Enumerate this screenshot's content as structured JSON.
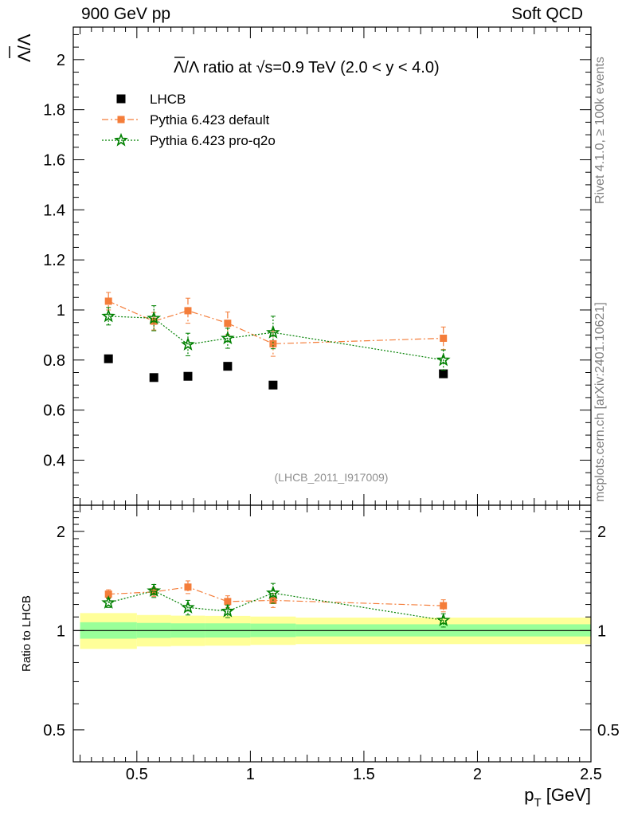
{
  "header": {
    "energy_label": "900 GeV pp",
    "category_label": "Soft QCD",
    "side_label_1": "Rivet 4.1.0, ≥ 100k events",
    "side_label_2": "mcplots.cern.ch [arXiv:2401.10621]"
  },
  "chart_data": [
    {
      "type": "scatter",
      "panel": "main",
      "title": "Λ̅/Λ ratio at √s=0.9 TeV (2.0 < y < 4.0)",
      "title_parts": {
        "lhs": "Λ/Λ",
        "mid": " ratio at ",
        "sqrt": "√",
        "rest": "s=0.9 TeV (2.0 < y < 4.0)"
      },
      "ylabel": "Λ/Λ",
      "xlim": [
        0.22,
        2.5
      ],
      "ylim": [
        0.22,
        2.13
      ],
      "yticks": [
        0.4,
        0.6,
        0.8,
        1,
        1.2,
        1.4,
        1.6,
        1.8,
        2
      ],
      "ytick_labels": [
        "0.4",
        "0.6",
        "0.8",
        "1",
        "1.2",
        "1.4",
        "1.6",
        "1.8",
        "2"
      ],
      "watermark": "(LHCB_2011_I917009)",
      "legend_position": "top-left",
      "x": [
        0.375,
        0.575,
        0.725,
        0.9,
        1.1,
        1.85
      ],
      "x_edges": [
        0.25,
        0.5,
        0.65,
        0.8,
        1.0,
        1.2,
        2.5
      ],
      "series": [
        {
          "name": "LHCB",
          "color": "#000000",
          "marker": "square",
          "line": "none",
          "values": [
            0.805,
            0.73,
            0.735,
            0.775,
            0.7,
            0.745
          ]
        },
        {
          "name": "Pythia 6.423 default",
          "color": "#f47d3a",
          "marker": "square",
          "line": "dashdot",
          "values": [
            1.035,
            0.955,
            0.997,
            0.947,
            0.865,
            0.887
          ],
          "errors": [
            0.035,
            0.035,
            0.05,
            0.045,
            0.05,
            0.045
          ]
        },
        {
          "name": "Pythia 6.423 pro-q2o",
          "color": "#008000",
          "marker": "star",
          "line": "dotted",
          "values": [
            0.975,
            0.967,
            0.862,
            0.887,
            0.91,
            0.8
          ],
          "errors": [
            0.035,
            0.05,
            0.045,
            0.04,
            0.065,
            0.04
          ]
        }
      ]
    },
    {
      "type": "scatter",
      "panel": "ratio",
      "ylabel": "Ratio to LHCB",
      "xlabel": "p_T [GeV]",
      "xlabel_parts": {
        "p": "p",
        "sub": "T",
        "unit": " [GeV]"
      },
      "xlim": [
        0.22,
        2.5
      ],
      "ylim": [
        0.4,
        2.4
      ],
      "ylog": true,
      "yticks": [
        0.5,
        1,
        2
      ],
      "ytick_labels": [
        "0.5",
        "1",
        "2"
      ],
      "xticks": [
        0.5,
        1,
        1.5,
        2,
        2.5
      ],
      "xtick_labels": [
        "0.5",
        "1",
        "1.5",
        "2",
        "2.5"
      ],
      "reference_line": 1,
      "band_inner": [
        {
          "x0": 0.25,
          "x1": 0.5,
          "lo": 0.945,
          "hi": 1.06
        },
        {
          "x0": 0.5,
          "x1": 0.65,
          "lo": 0.95,
          "hi": 1.055
        },
        {
          "x0": 0.65,
          "x1": 0.8,
          "lo": 0.952,
          "hi": 1.052
        },
        {
          "x0": 0.8,
          "x1": 1.0,
          "lo": 0.953,
          "hi": 1.052
        },
        {
          "x0": 1.0,
          "x1": 1.2,
          "lo": 0.956,
          "hi": 1.05
        },
        {
          "x0": 1.2,
          "x1": 2.5,
          "lo": 0.96,
          "hi": 1.045
        }
      ],
      "band_outer": [
        {
          "x0": 0.25,
          "x1": 0.5,
          "lo": 0.88,
          "hi": 1.13
        },
        {
          "x0": 0.5,
          "x1": 0.65,
          "lo": 0.895,
          "hi": 1.115
        },
        {
          "x0": 0.65,
          "x1": 0.8,
          "lo": 0.898,
          "hi": 1.11
        },
        {
          "x0": 0.8,
          "x1": 1.0,
          "lo": 0.9,
          "hi": 1.108
        },
        {
          "x0": 1.0,
          "x1": 1.2,
          "lo": 0.905,
          "hi": 1.103
        },
        {
          "x0": 1.2,
          "x1": 2.5,
          "lo": 0.91,
          "hi": 1.095
        }
      ],
      "x": [
        0.375,
        0.575,
        0.725,
        0.9,
        1.1,
        1.85
      ],
      "series": [
        {
          "name": "Pythia 6.423 default",
          "color": "#f47d3a",
          "marker": "square",
          "line": "dashdot",
          "values": [
            1.29,
            1.31,
            1.355,
            1.225,
            1.235,
            1.19
          ],
          "errors": [
            0.04,
            0.04,
            0.06,
            0.05,
            0.06,
            0.05
          ]
        },
        {
          "name": "Pythia 6.423 pro-q2o",
          "color": "#008000",
          "marker": "star",
          "line": "dotted",
          "values": [
            1.215,
            1.32,
            1.175,
            1.145,
            1.3,
            1.075
          ],
          "errors": [
            0.04,
            0.06,
            0.06,
            0.05,
            0.09,
            0.05
          ]
        }
      ]
    }
  ]
}
